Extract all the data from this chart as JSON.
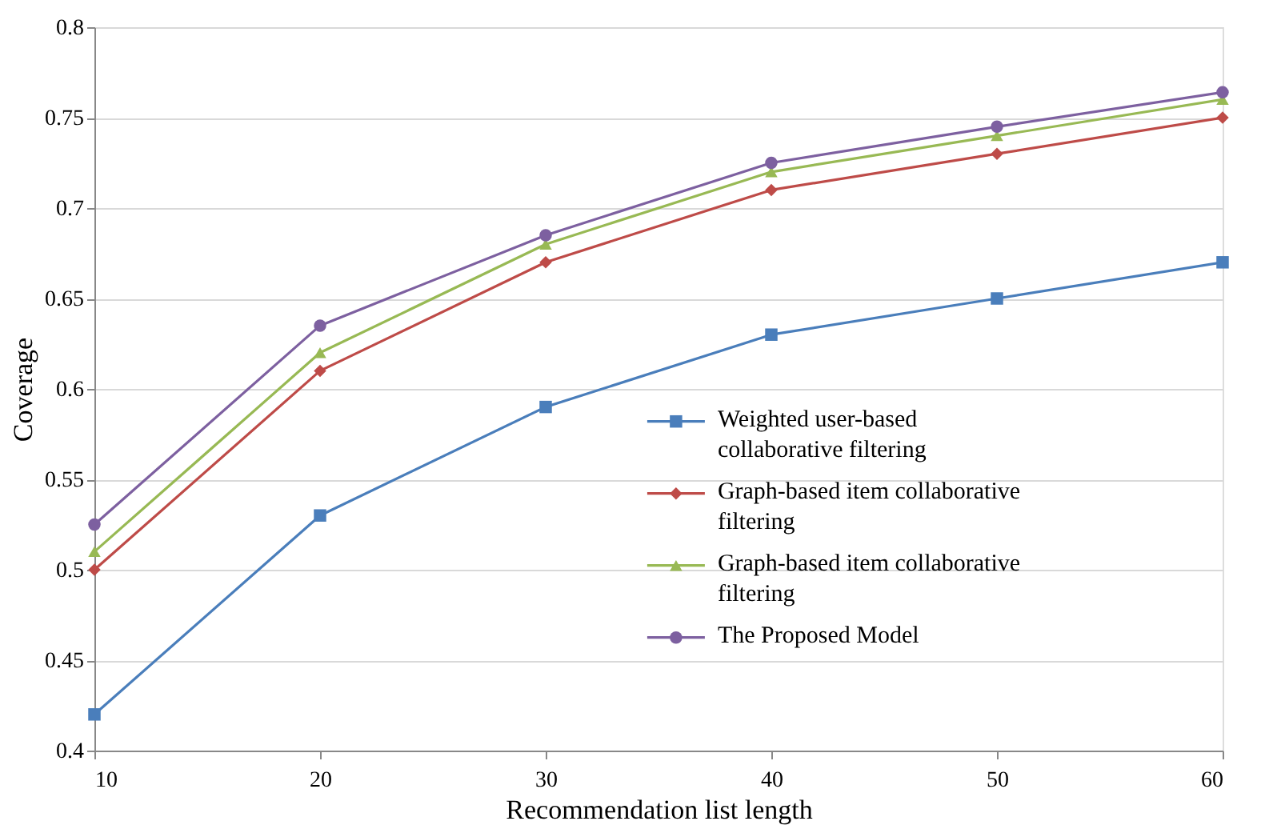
{
  "chart_data": {
    "type": "line",
    "xlabel": "Recommendation list length",
    "ylabel": "Coverage",
    "x": [
      10,
      20,
      30,
      40,
      50,
      60
    ],
    "series": [
      {
        "name": "Weighted user-based collaborative filtering",
        "color": "#4a7ebb",
        "marker": "square",
        "values": [
          0.42,
          0.53,
          0.59,
          0.63,
          0.65,
          0.67
        ]
      },
      {
        "name": "Graph-based item collaborative filtering",
        "color": "#be4b48",
        "marker": "diamond",
        "values": [
          0.5,
          0.61,
          0.67,
          0.71,
          0.73,
          0.75
        ]
      },
      {
        "name": "Graph-based item collaborative filtering",
        "color": "#98b954",
        "marker": "triangle",
        "values": [
          0.51,
          0.62,
          0.68,
          0.72,
          0.74,
          0.76
        ]
      },
      {
        "name": "The Proposed Model",
        "color": "#7d60a0",
        "marker": "circle",
        "values": [
          0.525,
          0.635,
          0.685,
          0.725,
          0.745,
          0.764
        ]
      }
    ],
    "xlim": [
      10,
      60
    ],
    "xticks": [
      10,
      20,
      30,
      40,
      50,
      60
    ],
    "ylim": [
      0.4,
      0.8
    ],
    "yticks": [
      0.4,
      0.45,
      0.5,
      0.55,
      0.6,
      0.65,
      0.7,
      0.75,
      0.8
    ],
    "grid": "y",
    "legend": "right",
    "line_style": "solid"
  }
}
